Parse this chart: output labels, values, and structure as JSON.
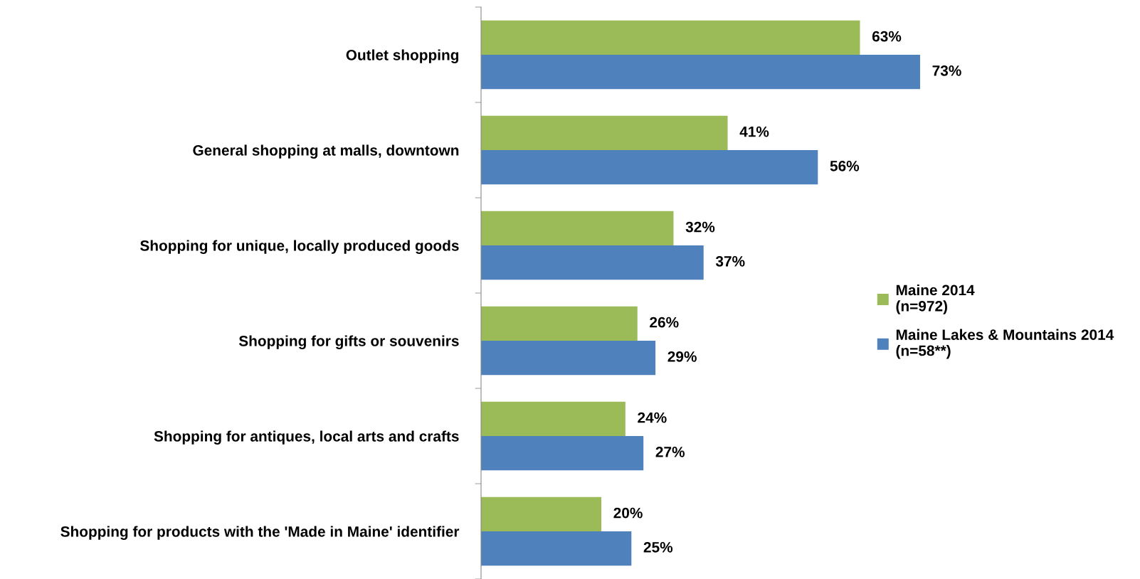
{
  "chart_data": {
    "type": "bar",
    "orientation": "horizontal",
    "categories": [
      "Outlet shopping",
      "General shopping at malls, downtown",
      "Shopping for unique, locally produced goods",
      "Shopping for gifts or souvenirs",
      "Shopping for antiques, local arts and crafts",
      "Shopping for products with the 'Made in Maine' identifier"
    ],
    "series": [
      {
        "name": "Maine 2014\n(n=972)",
        "color": "#9bbb59",
        "values": [
          63,
          41,
          32,
          26,
          24,
          20
        ],
        "value_labels": [
          "63%",
          "41%",
          "32%",
          "26%",
          "24%",
          "20%"
        ]
      },
      {
        "name": "Maine Lakes & Mountains 2014\n(n=58**)",
        "color": "#4f81bd",
        "values": [
          73,
          56,
          37,
          29,
          27,
          25
        ],
        "value_labels": [
          "73%",
          "56%",
          "37%",
          "29%",
          "27%",
          "25%"
        ]
      }
    ],
    "tick_labels": "y",
    "grid": false,
    "legend": "right"
  }
}
